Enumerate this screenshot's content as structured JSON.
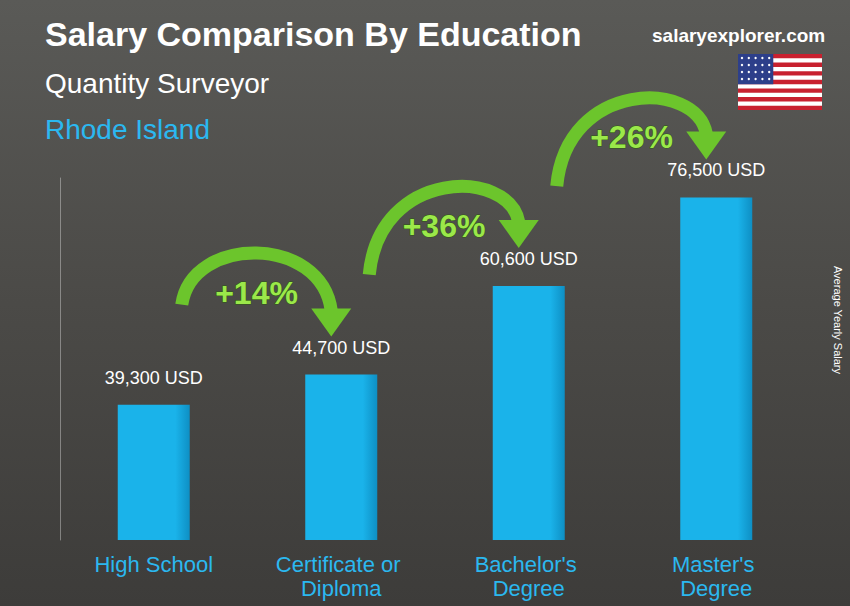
{
  "chart_data": {
    "type": "bar",
    "title": "Salary Comparison By Education",
    "subtitle": "Quantity Surveyor",
    "location": "Rhode Island",
    "watermark": "salaryexplorer.com",
    "y_label": "Average Yearly Salary",
    "categories": [
      "High School",
      "Certificate or Diploma",
      "Bachelor's Degree",
      "Master's Degree"
    ],
    "values": [
      39300,
      44700,
      60600,
      76500
    ],
    "value_labels": [
      "39,300 USD",
      "44,700 USD",
      "60,600 USD",
      "76,500 USD"
    ],
    "annotations": [
      "+14%",
      "+36%",
      "+26%"
    ],
    "color": "#1ab3ea",
    "ylim": [
      15000,
      80000
    ],
    "grid": false,
    "data_labels": true,
    "tick_labels": "x"
  }
}
